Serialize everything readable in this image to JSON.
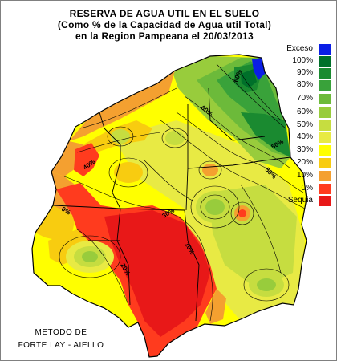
{
  "title": {
    "line1": "RESERVA DE AGUA UTIL EN EL SUELO",
    "line2": "(Como % de la Capacidad de Agua util Total)",
    "line3": "en la Region Pampeana el 20/03/2013"
  },
  "legend": [
    {
      "label": "Exceso",
      "color": "#0a1ee6"
    },
    {
      "label": "100%",
      "color": "#00702a"
    },
    {
      "label": "90%",
      "color": "#1a8a30"
    },
    {
      "label": "80%",
      "color": "#39a23a"
    },
    {
      "label": "70%",
      "color": "#6cba3a"
    },
    {
      "label": "60%",
      "color": "#98cc3c"
    },
    {
      "label": "50%",
      "color": "#c6dd40"
    },
    {
      "label": "40%",
      "color": "#e8ea44"
    },
    {
      "label": "30%",
      "color": "#ffff00"
    },
    {
      "label": "20%",
      "color": "#f8cc10"
    },
    {
      "label": "10%",
      "color": "#f4a030"
    },
    {
      "label": "0%",
      "color": "#ff3b1e"
    },
    {
      "label": "Sequia",
      "color": "#e81818"
    }
  ],
  "map_labels": [
    "60%",
    "50%",
    "40%",
    "30%",
    "20%",
    "10%",
    "0%",
    "60%",
    "50%"
  ],
  "credit": {
    "line1": "METODO DE",
    "line2": "FORTE LAY - AIELLO"
  }
}
